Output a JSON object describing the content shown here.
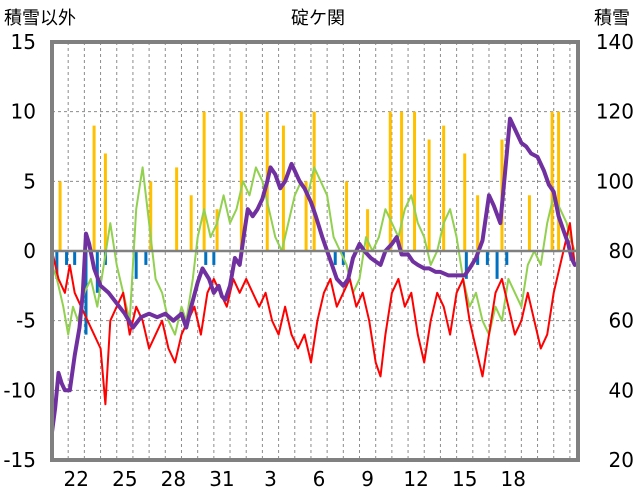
{
  "chart_data": {
    "type": "line",
    "title": "碇ケ関",
    "ylabel_left": "積雪以外",
    "ylabel_right": "積雪",
    "ylim_left": [
      -15,
      15
    ],
    "ylim_right": [
      20,
      140
    ],
    "yticks_left": [
      "15",
      "10",
      "5",
      "0",
      "-5",
      "-10",
      "-15"
    ],
    "yticks_right": [
      "140",
      "120",
      "100",
      "80",
      "60",
      "40",
      "20"
    ],
    "x_range_days": [
      0,
      30
    ],
    "x_tick_labels": [
      {
        "day": 1.5,
        "label": "22"
      },
      {
        "day": 4.5,
        "label": "25"
      },
      {
        "day": 7.5,
        "label": "28"
      },
      {
        "day": 10.5,
        "label": "31"
      },
      {
        "day": 13.5,
        "label": "3"
      },
      {
        "day": 16.5,
        "label": "6"
      },
      {
        "day": 19.5,
        "label": "9"
      },
      {
        "day": 22.5,
        "label": "12"
      },
      {
        "day": 25.5,
        "label": "15"
      },
      {
        "day": 28.5,
        "label": "18"
      }
    ],
    "grid": true,
    "colors": {
      "snow_depth": "#7030a0",
      "max_temp": "#92d050",
      "min_temp": "#ff0000",
      "snowfall": "#ffc000",
      "precip": "#0070c0",
      "zero_line": "#808080",
      "frame": "#808080"
    },
    "series": [
      {
        "key": "snow_depth",
        "axis": "right",
        "points": [
          [
            0,
            28
          ],
          [
            0.2,
            35
          ],
          [
            0.4,
            45
          ],
          [
            0.6,
            42
          ],
          [
            0.8,
            40
          ],
          [
            1.1,
            40
          ],
          [
            1.4,
            50
          ],
          [
            1.7,
            58
          ],
          [
            1.9,
            68
          ],
          [
            2.1,
            85
          ],
          [
            2.3,
            82
          ],
          [
            2.6,
            75
          ],
          [
            3,
            70
          ],
          [
            3.5,
            68
          ],
          [
            4,
            65
          ],
          [
            4.5,
            62
          ],
          [
            5,
            58
          ],
          [
            5.5,
            61
          ],
          [
            6,
            62
          ],
          [
            6.5,
            61
          ],
          [
            7,
            62
          ],
          [
            7.5,
            60
          ],
          [
            8,
            62
          ],
          [
            8.3,
            58
          ],
          [
            8.6,
            64
          ],
          [
            9,
            71
          ],
          [
            9.3,
            75
          ],
          [
            9.7,
            72
          ],
          [
            10,
            68
          ],
          [
            10.3,
            70
          ],
          [
            10.5,
            67
          ],
          [
            10.7,
            66
          ],
          [
            11,
            70
          ],
          [
            11.3,
            78
          ],
          [
            11.6,
            76
          ],
          [
            11.9,
            86
          ],
          [
            12.1,
            92
          ],
          [
            12.4,
            90
          ],
          [
            12.7,
            92
          ],
          [
            13,
            95
          ],
          [
            13.3,
            100
          ],
          [
            13.5,
            104
          ],
          [
            13.8,
            102
          ],
          [
            14.1,
            98
          ],
          [
            14.4,
            100
          ],
          [
            14.8,
            105
          ],
          [
            15,
            103
          ],
          [
            15.3,
            100
          ],
          [
            15.6,
            98
          ],
          [
            16,
            94
          ],
          [
            16.3,
            90
          ],
          [
            16.7,
            84
          ],
          [
            17,
            80
          ],
          [
            17.3,
            76
          ],
          [
            17.6,
            72
          ],
          [
            18,
            70
          ],
          [
            18.3,
            72
          ],
          [
            18.6,
            78
          ],
          [
            19,
            82
          ],
          [
            19.3,
            80
          ],
          [
            19.7,
            78
          ],
          [
            20,
            77
          ],
          [
            20.3,
            76
          ],
          [
            20.6,
            80
          ],
          [
            21,
            82
          ],
          [
            21.3,
            84
          ],
          [
            21.6,
            79
          ],
          [
            22,
            79
          ],
          [
            22.3,
            77
          ],
          [
            22.6,
            76
          ],
          [
            23,
            75
          ],
          [
            23.3,
            75
          ],
          [
            23.7,
            74
          ],
          [
            24,
            74
          ],
          [
            24.5,
            73
          ],
          [
            25,
            73
          ],
          [
            25.5,
            73
          ],
          [
            25.8,
            75
          ],
          [
            26.2,
            78
          ],
          [
            26.6,
            83
          ],
          [
            27,
            96
          ],
          [
            27.3,
            93
          ],
          [
            27.7,
            88
          ],
          [
            28,
            103
          ],
          [
            28.3,
            118
          ],
          [
            28.6,
            115
          ],
          [
            29,
            111
          ],
          [
            29.3,
            110
          ],
          [
            29.6,
            108
          ],
          [
            30,
            107
          ],
          [
            30.4,
            103
          ],
          [
            30.7,
            99
          ],
          [
            31,
            97
          ],
          [
            31.3,
            90
          ],
          [
            31.6,
            86
          ],
          [
            31.9,
            82
          ],
          [
            32.1,
            78
          ],
          [
            32.3,
            76
          ]
        ]
      },
      {
        "key": "max_temp",
        "axis": "left",
        "points": [
          [
            0,
            -1
          ],
          [
            0.3,
            -2
          ],
          [
            0.7,
            -4
          ],
          [
            1,
            -6
          ],
          [
            1.3,
            -4
          ],
          [
            1.6,
            -5
          ],
          [
            2,
            -3
          ],
          [
            2.4,
            -2
          ],
          [
            2.8,
            -4
          ],
          [
            3.2,
            -1
          ],
          [
            3.6,
            2
          ],
          [
            4,
            -1
          ],
          [
            4.4,
            -3
          ],
          [
            4.8,
            -5
          ],
          [
            5.2,
            3
          ],
          [
            5.6,
            6
          ],
          [
            6,
            2
          ],
          [
            6.4,
            -2
          ],
          [
            6.8,
            -3
          ],
          [
            7.2,
            -5
          ],
          [
            7.6,
            -6
          ],
          [
            8,
            -4
          ],
          [
            8.3,
            -5
          ],
          [
            8.7,
            -2
          ],
          [
            9,
            1
          ],
          [
            9.4,
            3
          ],
          [
            9.8,
            1
          ],
          [
            10.2,
            2
          ],
          [
            10.6,
            4
          ],
          [
            11,
            2
          ],
          [
            11.4,
            3
          ],
          [
            11.8,
            5
          ],
          [
            12.2,
            4
          ],
          [
            12.6,
            6
          ],
          [
            13,
            5
          ],
          [
            13.4,
            3
          ],
          [
            13.8,
            1
          ],
          [
            14.2,
            0
          ],
          [
            14.6,
            2
          ],
          [
            15,
            4
          ],
          [
            15.4,
            5
          ],
          [
            15.8,
            4
          ],
          [
            16.2,
            6
          ],
          [
            16.6,
            5
          ],
          [
            17,
            4
          ],
          [
            17.4,
            1
          ],
          [
            17.8,
            0
          ],
          [
            18.2,
            -1
          ],
          [
            18.6,
            -3
          ],
          [
            19,
            -2
          ],
          [
            19.4,
            1
          ],
          [
            19.8,
            0
          ],
          [
            20.2,
            1
          ],
          [
            20.6,
            3
          ],
          [
            21,
            2
          ],
          [
            21.4,
            1
          ],
          [
            21.8,
            3
          ],
          [
            22.2,
            4
          ],
          [
            22.6,
            2
          ],
          [
            23,
            1
          ],
          [
            23.4,
            -1
          ],
          [
            23.8,
            0
          ],
          [
            24.2,
            2
          ],
          [
            24.6,
            3
          ],
          [
            25,
            1
          ],
          [
            25.4,
            -2
          ],
          [
            25.8,
            -4
          ],
          [
            26.2,
            -3
          ],
          [
            26.6,
            -5
          ],
          [
            27,
            -6
          ],
          [
            27.4,
            -4
          ],
          [
            27.8,
            -5
          ],
          [
            28.2,
            -2
          ],
          [
            28.6,
            -3
          ],
          [
            29,
            -4
          ],
          [
            29.4,
            -1
          ],
          [
            29.8,
            0
          ],
          [
            30.2,
            -1
          ],
          [
            30.6,
            2
          ],
          [
            31,
            4
          ],
          [
            31.4,
            3
          ],
          [
            31.8,
            2
          ],
          [
            32,
            1
          ],
          [
            32.3,
            0
          ]
        ]
      },
      {
        "key": "min_temp",
        "axis": "left",
        "points": [
          [
            0,
            0
          ],
          [
            0.4,
            -2
          ],
          [
            0.8,
            -3
          ],
          [
            1.1,
            -1
          ],
          [
            1.4,
            -3
          ],
          [
            1.8,
            -4
          ],
          [
            2.2,
            -5
          ],
          [
            2.6,
            -6
          ],
          [
            3,
            -7
          ],
          [
            3.3,
            -11
          ],
          [
            3.6,
            -5
          ],
          [
            4,
            -4
          ],
          [
            4.4,
            -3
          ],
          [
            4.8,
            -6
          ],
          [
            5.2,
            -4
          ],
          [
            5.6,
            -5
          ],
          [
            6,
            -7
          ],
          [
            6.4,
            -6
          ],
          [
            6.8,
            -5
          ],
          [
            7.2,
            -7
          ],
          [
            7.6,
            -8
          ],
          [
            8,
            -6
          ],
          [
            8.4,
            -5
          ],
          [
            8.8,
            -4
          ],
          [
            9.2,
            -6
          ],
          [
            9.6,
            -3
          ],
          [
            10,
            -2
          ],
          [
            10.4,
            -3
          ],
          [
            10.8,
            -4
          ],
          [
            11.2,
            -2
          ],
          [
            11.6,
            -3
          ],
          [
            12,
            -2
          ],
          [
            12.4,
            -3
          ],
          [
            12.8,
            -4
          ],
          [
            13.2,
            -3
          ],
          [
            13.6,
            -5
          ],
          [
            14,
            -6
          ],
          [
            14.4,
            -4
          ],
          [
            14.8,
            -6
          ],
          [
            15.2,
            -7
          ],
          [
            15.6,
            -6
          ],
          [
            16,
            -8
          ],
          [
            16.4,
            -5
          ],
          [
            16.8,
            -3
          ],
          [
            17.2,
            -2
          ],
          [
            17.6,
            -4
          ],
          [
            18,
            -3
          ],
          [
            18.4,
            -2
          ],
          [
            18.8,
            -4
          ],
          [
            19.2,
            -3
          ],
          [
            19.6,
            -5
          ],
          [
            20,
            -8
          ],
          [
            20.3,
            -9
          ],
          [
            20.6,
            -6
          ],
          [
            21,
            -3
          ],
          [
            21.4,
            -2
          ],
          [
            21.8,
            -4
          ],
          [
            22.2,
            -3
          ],
          [
            22.6,
            -6
          ],
          [
            23,
            -8
          ],
          [
            23.4,
            -5
          ],
          [
            23.8,
            -3
          ],
          [
            24.2,
            -4
          ],
          [
            24.6,
            -6
          ],
          [
            25,
            -3
          ],
          [
            25.4,
            -2
          ],
          [
            25.8,
            -5
          ],
          [
            26.2,
            -7
          ],
          [
            26.6,
            -9
          ],
          [
            27,
            -6
          ],
          [
            27.4,
            -3
          ],
          [
            27.8,
            -2
          ],
          [
            28.2,
            -4
          ],
          [
            28.6,
            -6
          ],
          [
            29,
            -5
          ],
          [
            29.4,
            -3
          ],
          [
            29.8,
            -5
          ],
          [
            30.2,
            -7
          ],
          [
            30.6,
            -6
          ],
          [
            31,
            -3
          ],
          [
            31.4,
            -1
          ],
          [
            31.8,
            1
          ],
          [
            32,
            2
          ],
          [
            32.3,
            -1
          ]
        ]
      },
      {
        "key": "snowfall",
        "axis": "left",
        "type": "bar",
        "points": [
          [
            0.5,
            5
          ],
          [
            2.6,
            9
          ],
          [
            3.3,
            7
          ],
          [
            6.1,
            5
          ],
          [
            7.7,
            6
          ],
          [
            8.6,
            4
          ],
          [
            9.4,
            10
          ],
          [
            10.2,
            3
          ],
          [
            11.7,
            10
          ],
          [
            13.3,
            10
          ],
          [
            14.3,
            9
          ],
          [
            15.7,
            5
          ],
          [
            16.2,
            10
          ],
          [
            18.2,
            5
          ],
          [
            19.5,
            3
          ],
          [
            20.9,
            10
          ],
          [
            21.6,
            10
          ],
          [
            22.4,
            10
          ],
          [
            23.3,
            8
          ],
          [
            24.2,
            9
          ],
          [
            25.5,
            7
          ],
          [
            26.3,
            4
          ],
          [
            27.8,
            8
          ],
          [
            29.5,
            4
          ],
          [
            30.9,
            10
          ],
          [
            31.3,
            10
          ]
        ]
      },
      {
        "key": "precip",
        "axis": "left",
        "type": "bar",
        "points": [
          [
            0.3,
            -2
          ],
          [
            0.9,
            -1
          ],
          [
            1.4,
            -1
          ],
          [
            2.1,
            -6
          ],
          [
            2.8,
            -3
          ],
          [
            3.3,
            -1
          ],
          [
            5.2,
            -2
          ],
          [
            5.8,
            -1
          ],
          [
            9.5,
            -1
          ],
          [
            10,
            -1
          ],
          [
            17.5,
            -1
          ],
          [
            18,
            -1
          ],
          [
            25.6,
            -2
          ],
          [
            26.3,
            -1
          ],
          [
            26.9,
            -1
          ],
          [
            27.5,
            -2
          ],
          [
            28.1,
            -1
          ]
        ]
      }
    ]
  }
}
